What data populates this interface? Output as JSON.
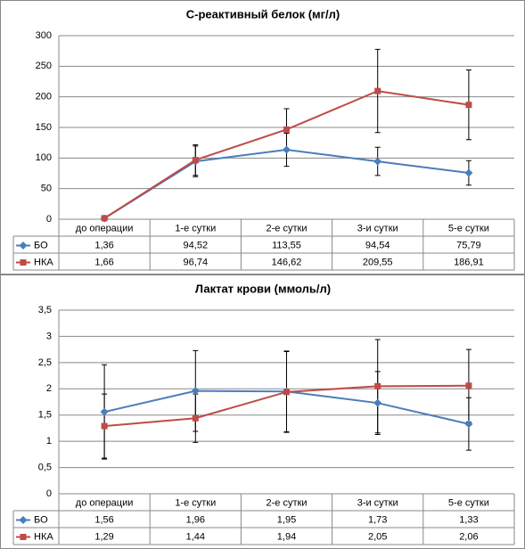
{
  "chart_data": [
    {
      "type": "line",
      "title": "С-реактивный белок (мг/л)",
      "categories": [
        "до операции",
        "1-е сутки",
        "2-е сутки",
        "3-и сутки",
        "5-е сутки"
      ],
      "series": [
        {
          "name": "БО",
          "color": "#4a7ebb",
          "marker": "diamond",
          "values": [
            1.36,
            94.52,
            113.55,
            94.54,
            75.79
          ],
          "value_labels": [
            "1,36",
            "94,52",
            "113,55",
            "94,54",
            "75,79"
          ],
          "errors": [
            null,
            25,
            27,
            23,
            20
          ]
        },
        {
          "name": "НКА",
          "color": "#be4b48",
          "marker": "square",
          "values": [
            1.66,
            96.74,
            146.62,
            209.55,
            186.91
          ],
          "value_labels": [
            "1,66",
            "96,74",
            "146,62",
            "209,55",
            "186,91"
          ],
          "errors": [
            null,
            25,
            34,
            68,
            57
          ]
        }
      ],
      "ylim": [
        0,
        300
      ],
      "yticks": [
        0,
        50,
        100,
        150,
        200,
        250,
        300
      ],
      "grid": true
    },
    {
      "type": "line",
      "title": "Лактат крови (ммоль/л)",
      "categories": [
        "до операции",
        "1-е сутки",
        "2-е сутки",
        "3-и сутки",
        "5-е сутки"
      ],
      "series": [
        {
          "name": "БО",
          "color": "#4a7ebb",
          "marker": "diamond",
          "values": [
            1.56,
            1.96,
            1.95,
            1.73,
            1.33
          ],
          "value_labels": [
            "1,56",
            "1,96",
            "1,95",
            "1,73",
            "1,33"
          ],
          "errors": [
            0.9,
            0.77,
            0.77,
            0.6,
            0.5
          ]
        },
        {
          "name": "НКА",
          "color": "#be4b48",
          "marker": "square",
          "values": [
            1.29,
            1.44,
            1.94,
            2.05,
            2.06
          ],
          "value_labels": [
            "1,29",
            "1,44",
            "1,94",
            "2,05",
            "2,06"
          ],
          "errors": [
            0.61,
            0.46,
            0.77,
            0.89,
            0.69
          ]
        }
      ],
      "ylim": [
        0,
        3.5
      ],
      "yticks": [
        0,
        {
          "value": 0.5,
          "label": "0,5"
        },
        1,
        {
          "value": 1.5,
          "label": "1,5"
        },
        2,
        {
          "value": 2.5,
          "label": "2,5"
        },
        3,
        {
          "value": 3.5,
          "label": "3,5"
        }
      ],
      "grid": true
    }
  ]
}
